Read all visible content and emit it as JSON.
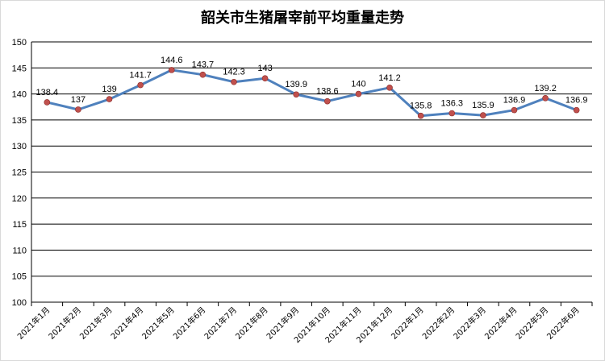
{
  "chart_data": {
    "type": "line",
    "title": "韶关市生猪屠宰前平均重量走势",
    "categories": [
      "2021年1月",
      "2021年2月",
      "2021年3月",
      "2021年4月",
      "2021年5月",
      "2021年6月",
      "2021年7月",
      "2021年8月",
      "2021年9月",
      "2021年10月",
      "2021年11月",
      "2021年12月",
      "2022年1月",
      "2022年2月",
      "2022年3月",
      "2022年4月",
      "2022年5月",
      "2022年6月"
    ],
    "series": [
      {
        "values": [
          138.4,
          137,
          139,
          141.7,
          144.6,
          143.7,
          142.3,
          143,
          139.9,
          138.6,
          140,
          141.2,
          135.8,
          136.3,
          135.9,
          136.9,
          139.2,
          136.9
        ]
      }
    ],
    "data_labels": [
      "138.4",
      "137",
      "139",
      "141.7",
      "144.6",
      "143.7",
      "142.3",
      "143",
      "139.9",
      "138.6",
      "140",
      "141.2",
      "135.8",
      "136.3",
      "135.9",
      "136.9",
      "139.2",
      "136.9"
    ],
    "ylim": [
      100,
      150
    ],
    "yticks": [
      "100",
      "105",
      "110",
      "115",
      "120",
      "125",
      "130",
      "135",
      "140",
      "145",
      "150"
    ],
    "grid": true,
    "legend": "none",
    "colors": {
      "line": "#4f81bd",
      "marker": "#c0504d",
      "grid": "#000000"
    }
  }
}
